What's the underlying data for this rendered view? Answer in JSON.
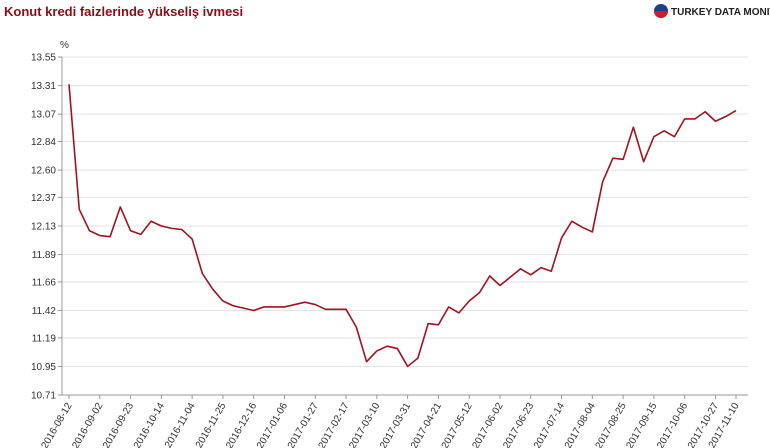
{
  "logo_text": "TURKEY DATA MONITOR",
  "chart_data": {
    "type": "line",
    "title": "Konut kredi faizlerinde yükseliş ivmesi",
    "y_label": "%",
    "categories": [
      "2016-08-12",
      null,
      null,
      "2016-09-02",
      null,
      null,
      "2016-09-23",
      null,
      null,
      "2016-10-14",
      null,
      null,
      "2016-11-04",
      null,
      null,
      "2016-11-25",
      null,
      null,
      "2016-12-16",
      null,
      null,
      "2017-01-06",
      null,
      null,
      "2017-01-27",
      null,
      null,
      "2017-02-17",
      null,
      null,
      "2017-03-10",
      null,
      null,
      "2017-03-31",
      null,
      null,
      "2017-04-21",
      null,
      null,
      "2017-05-12",
      null,
      null,
      "2017-06-02",
      null,
      null,
      "2017-06-23",
      null,
      null,
      "2017-07-14",
      null,
      null,
      "2017-08-04",
      null,
      null,
      "2017-08-25",
      null,
      null,
      "2017-09-15",
      null,
      null,
      "2017-10-06",
      null,
      null,
      "2017-10-27",
      null,
      "2017-11-10"
    ],
    "values": [
      13.32,
      12.27,
      12.09,
      12.05,
      12.04,
      12.29,
      12.09,
      12.06,
      12.17,
      12.13,
      12.11,
      12.1,
      12.02,
      11.73,
      11.6,
      11.5,
      11.46,
      11.44,
      11.42,
      11.45,
      11.45,
      11.45,
      11.47,
      11.49,
      11.47,
      11.43,
      11.43,
      11.43,
      11.28,
      10.99,
      11.08,
      11.12,
      11.1,
      10.95,
      11.02,
      11.31,
      11.3,
      11.45,
      11.4,
      11.5,
      11.57,
      11.71,
      11.63,
      11.7,
      11.77,
      11.72,
      11.78,
      11.75,
      12.03,
      12.17,
      12.12,
      12.08,
      12.5,
      12.7,
      12.69,
      12.96,
      12.67,
      12.88,
      12.93,
      12.88,
      13.03,
      13.03,
      13.09,
      13.01,
      13.05,
      13.1
    ],
    "color": "#a3121f",
    "ylim": [
      10.71,
      13.55
    ],
    "yticks": [
      10.71,
      10.95,
      11.19,
      11.42,
      11.66,
      11.89,
      12.13,
      12.37,
      {
        "value": 12.6,
        "label": "12.60"
      },
      12.84,
      13.07,
      13.31,
      13.55
    ],
    "grid": true
  }
}
